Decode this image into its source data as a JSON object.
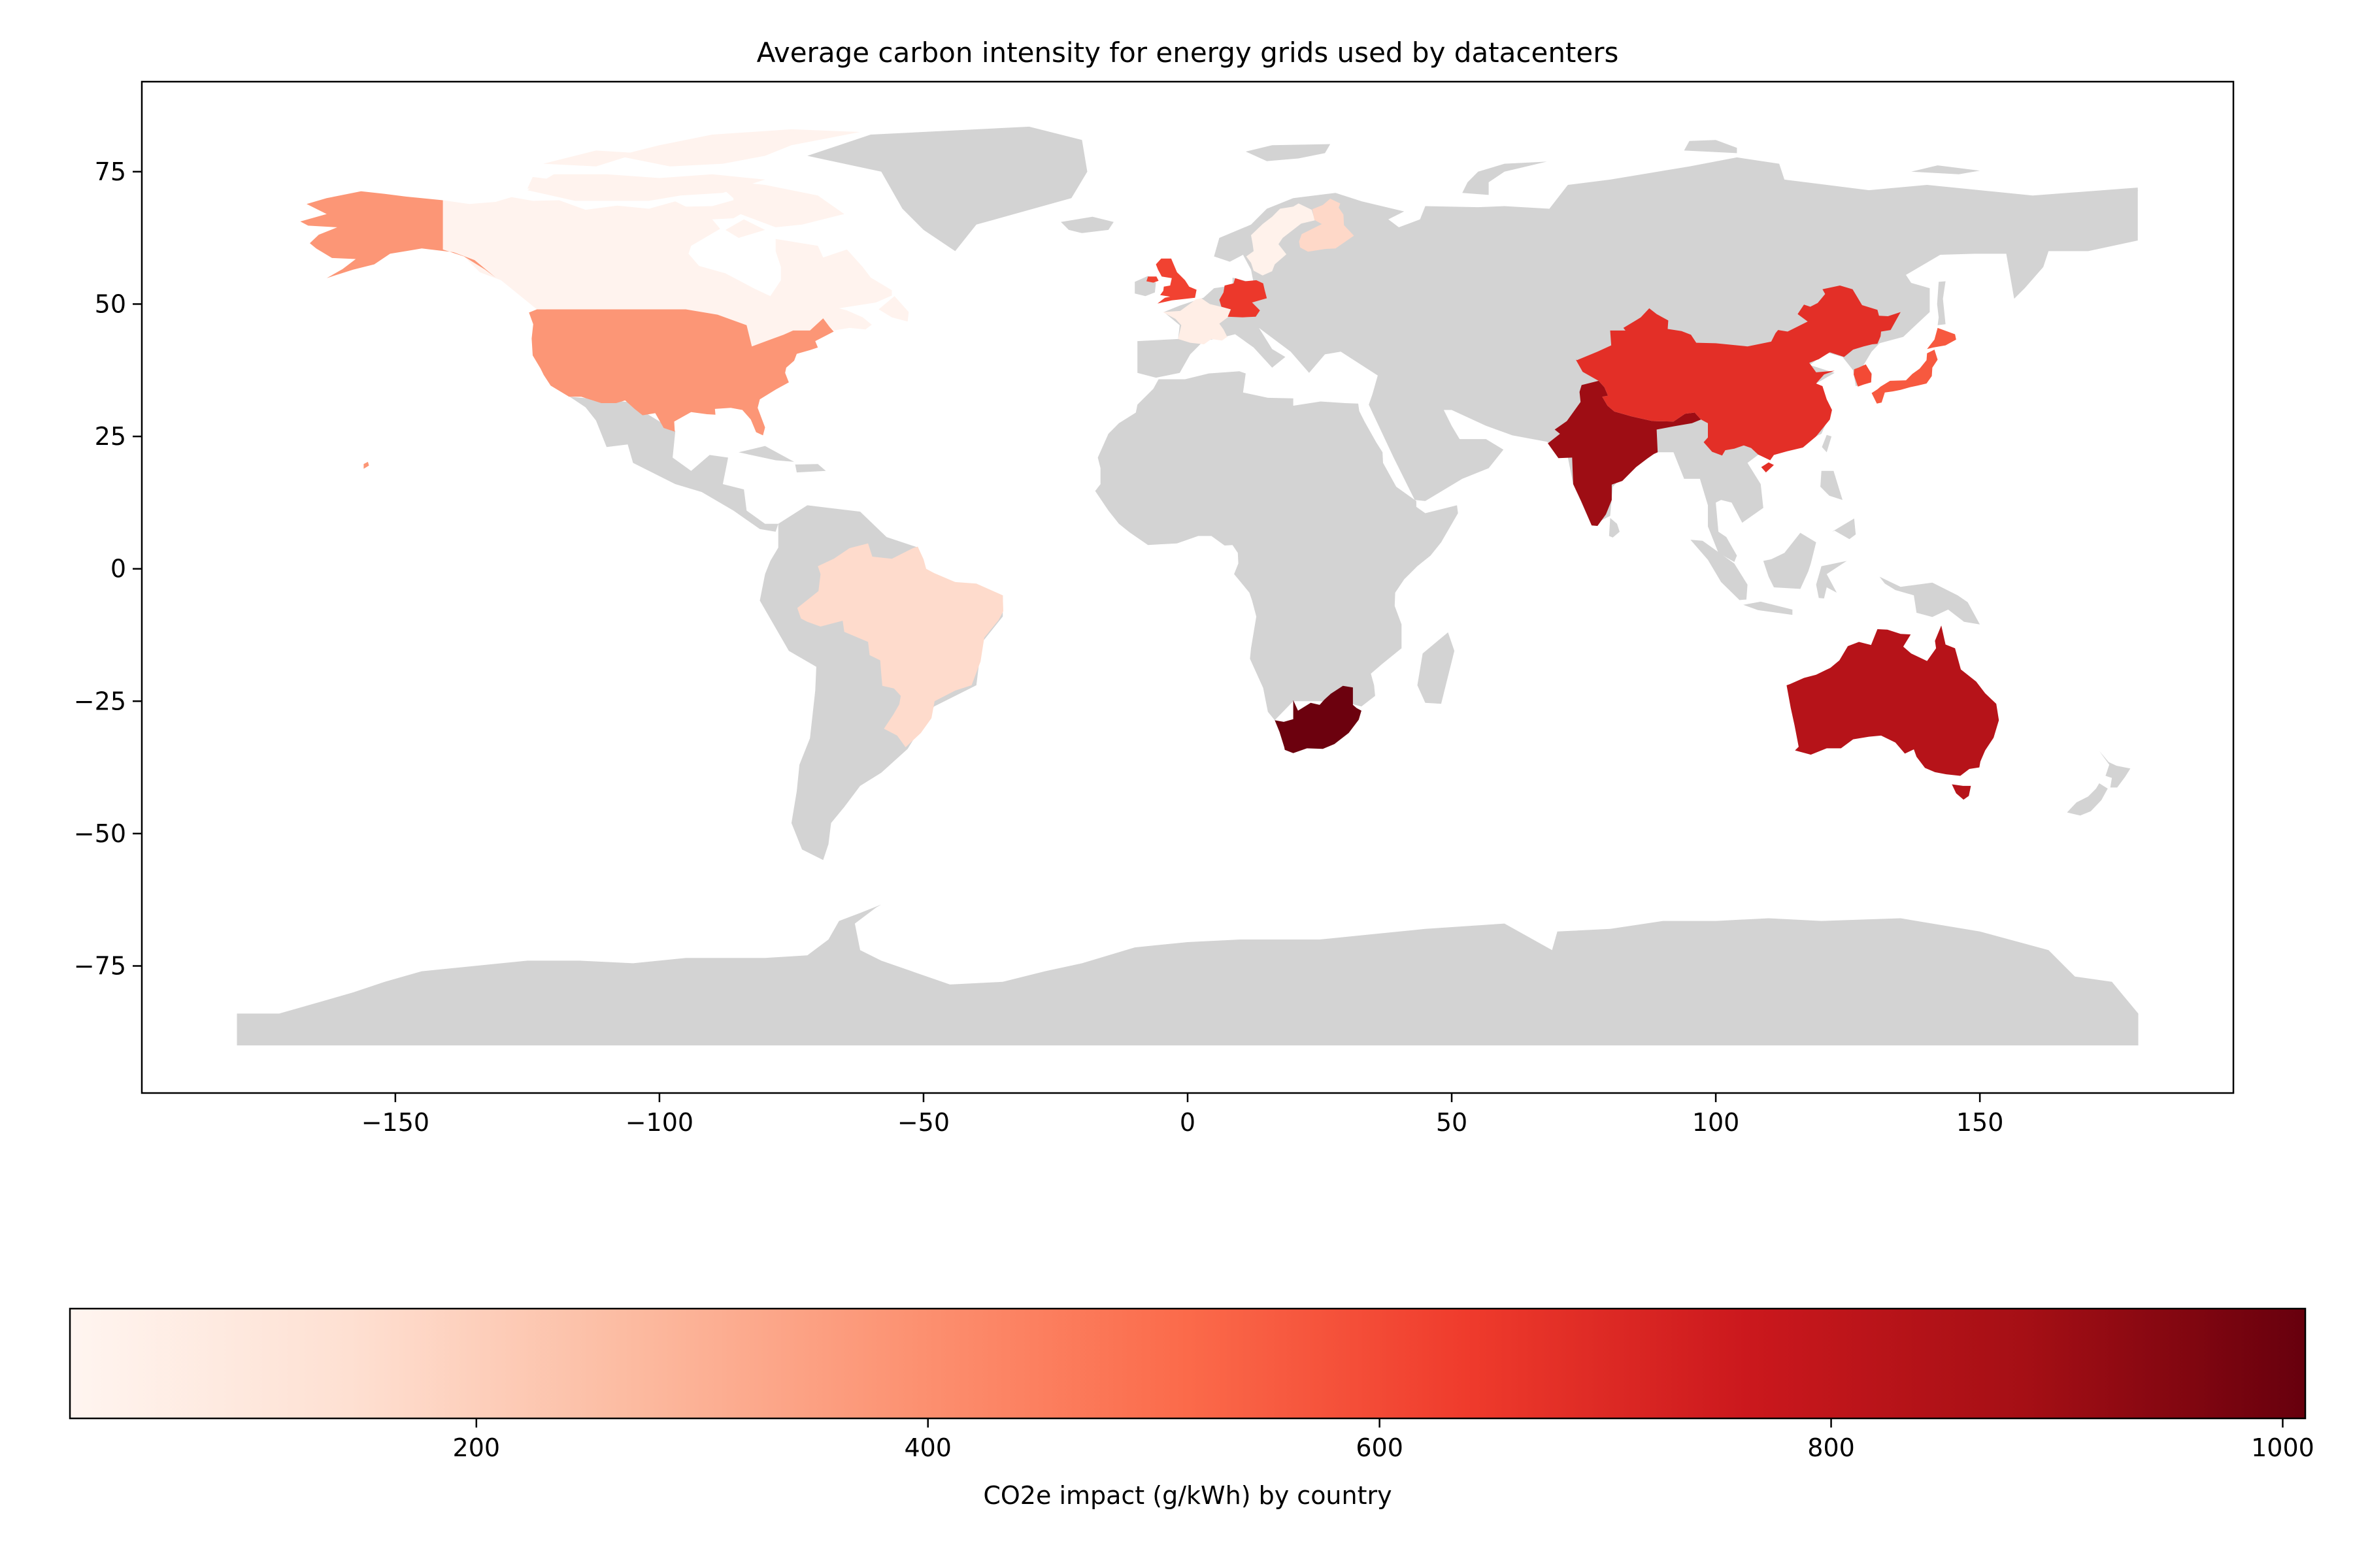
{
  "chart_data": {
    "type": "choropleth",
    "title": "Average carbon intensity for energy grids used by datacenters",
    "xlabel": "",
    "ylabel": "",
    "xlim": [
      -198,
      198
    ],
    "ylim": [
      -99,
      92
    ],
    "x_ticks": [
      -150,
      -100,
      -50,
      0,
      50,
      100,
      150
    ],
    "x_tick_labels": [
      "−150",
      "−100",
      "−50",
      "0",
      "50",
      "100",
      "150"
    ],
    "y_ticks": [
      75,
      50,
      25,
      0,
      -25,
      -50,
      -75
    ],
    "y_tick_labels": [
      "75",
      "50",
      "25",
      "0",
      "−25",
      "−50",
      "−75"
    ],
    "grid": false,
    "colormap": "Reds",
    "no_data_color": "#d3d3d3",
    "colorbar": {
      "label": "CO2e impact (g/kWh) by country",
      "orientation": "horizontal",
      "vmin": 20,
      "vmax": 1010,
      "ticks": [
        200,
        400,
        600,
        800,
        1000
      ],
      "tick_labels": [
        "200",
        "400",
        "600",
        "800",
        "1000"
      ]
    },
    "countries": [
      {
        "name": "Canada",
        "value": 30
      },
      {
        "name": "United States",
        "value": 380
      },
      {
        "name": "Brazil",
        "value": 160
      },
      {
        "name": "United Kingdom",
        "value": 620
      },
      {
        "name": "France",
        "value": 60
      },
      {
        "name": "Germany",
        "value": 650
      },
      {
        "name": "Sweden",
        "value": 40
      },
      {
        "name": "Finland",
        "value": 170
      },
      {
        "name": "South Africa",
        "value": 1000
      },
      {
        "name": "India",
        "value": 900
      },
      {
        "name": "China",
        "value": 680
      },
      {
        "name": "South Korea",
        "value": 600
      },
      {
        "name": "Japan",
        "value": 560
      },
      {
        "name": "Australia",
        "value": 830
      }
    ]
  }
}
